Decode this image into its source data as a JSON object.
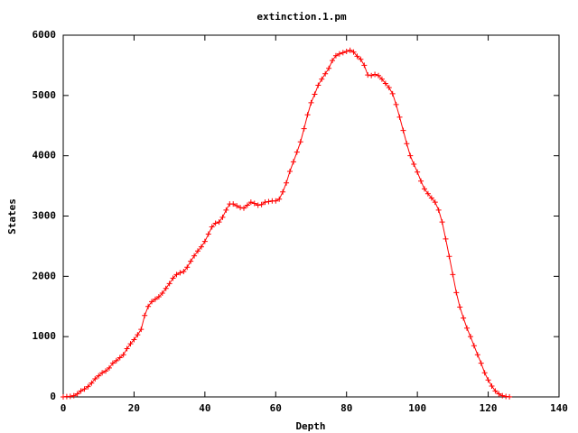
{
  "chart_data": {
    "type": "line",
    "title": "extinction.1.pm",
    "x_label": "Depth",
    "y_label": "States",
    "x": [
      0,
      1,
      2,
      3,
      4,
      5,
      6,
      7,
      8,
      9,
      10,
      11,
      12,
      13,
      14,
      15,
      16,
      17,
      18,
      19,
      20,
      21,
      22,
      23,
      24,
      25,
      26,
      27,
      28,
      29,
      30,
      31,
      32,
      33,
      34,
      35,
      36,
      37,
      38,
      39,
      40,
      41,
      42,
      43,
      44,
      45,
      46,
      47,
      48,
      49,
      50,
      51,
      52,
      53,
      54,
      55,
      56,
      57,
      58,
      59,
      60,
      61,
      62,
      63,
      64,
      65,
      66,
      67,
      68,
      69,
      70,
      71,
      72,
      73,
      74,
      75,
      76,
      77,
      78,
      79,
      80,
      81,
      82,
      83,
      84,
      85,
      86,
      87,
      88,
      89,
      90,
      91,
      92,
      93,
      94,
      95,
      96,
      97,
      98,
      99,
      100,
      101,
      102,
      103,
      104,
      105,
      106,
      107,
      108,
      109,
      110,
      111,
      112,
      113,
      114,
      115,
      116,
      117,
      118,
      119,
      120,
      121,
      122,
      123,
      124,
      125,
      126
    ],
    "series": [
      {
        "color": "#ff0000",
        "marker": "plus",
        "values": [
          0,
          5,
          10,
          20,
          50,
          100,
          130,
          170,
          230,
          300,
          350,
          400,
          430,
          480,
          560,
          600,
          650,
          700,
          800,
          880,
          950,
          1030,
          1120,
          1350,
          1500,
          1580,
          1620,
          1660,
          1720,
          1800,
          1880,
          1970,
          2030,
          2060,
          2080,
          2150,
          2250,
          2340,
          2420,
          2490,
          2580,
          2700,
          2820,
          2880,
          2900,
          2980,
          3100,
          3200,
          3200,
          3170,
          3140,
          3130,
          3180,
          3230,
          3210,
          3180,
          3190,
          3230,
          3240,
          3250,
          3250,
          3280,
          3400,
          3550,
          3740,
          3900,
          4060,
          4230,
          4450,
          4680,
          4880,
          5020,
          5170,
          5270,
          5360,
          5450,
          5580,
          5660,
          5690,
          5710,
          5730,
          5750,
          5720,
          5650,
          5600,
          5500,
          5340,
          5330,
          5350,
          5330,
          5270,
          5200,
          5130,
          5030,
          4850,
          4640,
          4420,
          4200,
          4000,
          3860,
          3730,
          3580,
          3450,
          3370,
          3300,
          3230,
          3100,
          2900,
          2620,
          2330,
          2030,
          1730,
          1490,
          1310,
          1140,
          1000,
          850,
          700,
          560,
          400,
          280,
          180,
          100,
          50,
          20,
          8,
          2
        ]
      }
    ],
    "xlim": [
      0,
      140
    ],
    "xticks": [
      0,
      20,
      40,
      60,
      80,
      100,
      120,
      140
    ],
    "ylim": [
      0,
      6000
    ],
    "yticks": [
      0,
      1000,
      2000,
      3000,
      4000,
      5000,
      6000
    ],
    "grid": false
  }
}
